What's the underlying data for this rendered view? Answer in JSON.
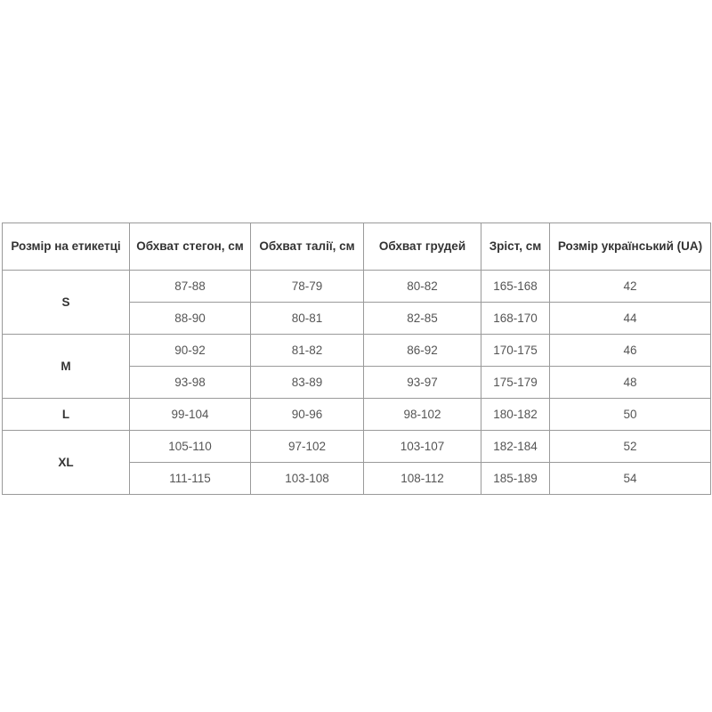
{
  "table": {
    "headers": [
      "Розмір на етикетці",
      "Обхват стегон, см",
      "Обхват талії, см",
      "Обхват грудей",
      "Зріст, см",
      "Розмір український (UA)"
    ],
    "groups": [
      {
        "size": "S",
        "rows": [
          [
            "87-88",
            "78-79",
            "80-82",
            "165-168",
            "42"
          ],
          [
            "88-90",
            "80-81",
            "82-85",
            "168-170",
            "44"
          ]
        ]
      },
      {
        "size": "M",
        "rows": [
          [
            "90-92",
            "81-82",
            "86-92",
            "170-175",
            "46"
          ],
          [
            "93-98",
            "83-89",
            "93-97",
            "175-179",
            "48"
          ]
        ]
      },
      {
        "size": "L",
        "rows": [
          [
            "99-104",
            "90-96",
            "98-102",
            "180-182",
            "50"
          ]
        ]
      },
      {
        "size": "XL",
        "rows": [
          [
            "105-110",
            "97-102",
            "103-107",
            "182-184",
            "52"
          ],
          [
            "111-115",
            "103-108",
            "108-112",
            "185-189",
            "54"
          ]
        ]
      }
    ]
  }
}
